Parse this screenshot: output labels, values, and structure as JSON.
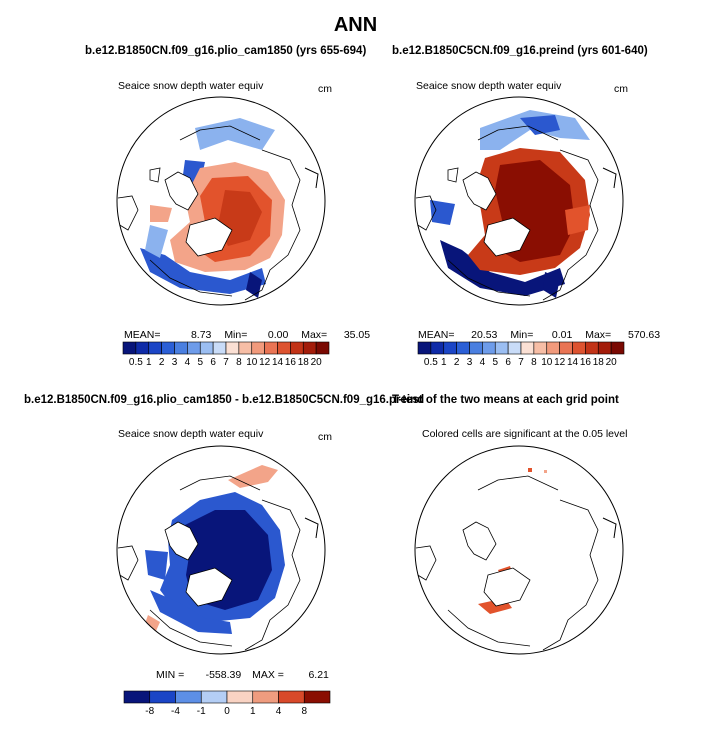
{
  "title": "ANN",
  "chart_data": [
    {
      "type": "heatmap",
      "projection": "north-polar-stereographic",
      "title": "b.e12.B1850CN.f09_g16.plio_cam1850 (yrs 655-694)",
      "variable": "Seaice snow depth water equiv",
      "units": "cm",
      "stats": {
        "mean": "8.73",
        "min": "0.00",
        "max": "35.05"
      },
      "stats_labels": {
        "mean": "MEAN=",
        "min": "Min=",
        "max": "Max="
      },
      "colorbar_levels": [
        "0.5",
        "1",
        "2",
        "3",
        "4",
        "5",
        "6",
        "7",
        "8",
        "10",
        "12",
        "14",
        "16",
        "18",
        "20"
      ],
      "field_summary": "moderate snow (8-14 cm) over central Arctic and Siberian shelf, low values (<2 cm) along Barents/Greenland margins"
    },
    {
      "type": "heatmap",
      "projection": "north-polar-stereographic",
      "title": "b.e12.B1850C5CN.f09_g16.preind (yrs 601-640)",
      "variable": "Seaice snow depth water equiv",
      "units": "cm",
      "stats": {
        "mean": "20.53",
        "min": "0.01",
        "max": "570.63"
      },
      "stats_labels": {
        "mean": "MEAN=",
        "min": "Min=",
        "max": "Max="
      },
      "colorbar_levels": [
        "0.5",
        "1",
        "2",
        "3",
        "4",
        "5",
        "6",
        "7",
        "8",
        "10",
        "12",
        "14",
        "16",
        "18",
        "20"
      ],
      "field_summary": "deep snow (>20 cm) over most of the Arctic Ocean, low values along marginal ice zones"
    },
    {
      "type": "heatmap",
      "projection": "north-polar-stereographic",
      "title": "b.e12.B1850CN.f09_g16.plio_cam1850 - b.e12.B1850C5CN.f09_g16.preind",
      "variable": "Seaice snow depth water equiv",
      "units": "cm",
      "stats": {
        "min": "-558.39",
        "max": "6.21"
      },
      "stats_labels": {
        "min": "MIN =",
        "max": "MAX ="
      },
      "colorbar_levels": [
        "-8",
        "-4",
        "-1",
        "0",
        "1",
        "4",
        "8"
      ],
      "field_summary": "strongly negative difference (< -8 cm) across the Arctic basin, small positive values near Fram Strait"
    },
    {
      "type": "heatmap",
      "projection": "north-polar-stereographic",
      "title": "T-test of the two means at each grid point",
      "variable": "Colored cells are significant at the 0.05 level",
      "field_summary": "few significant cells near Greenland/Barents margin"
    }
  ],
  "palette": {
    "blue_deep": "#08157a",
    "blue_mid": "#2b58cf",
    "blue_light": "#8bb2ee",
    "white": "#ffffff",
    "red_light": "#f3a489",
    "red_mid": "#e2532c",
    "red_deep": "#8a0e02"
  }
}
